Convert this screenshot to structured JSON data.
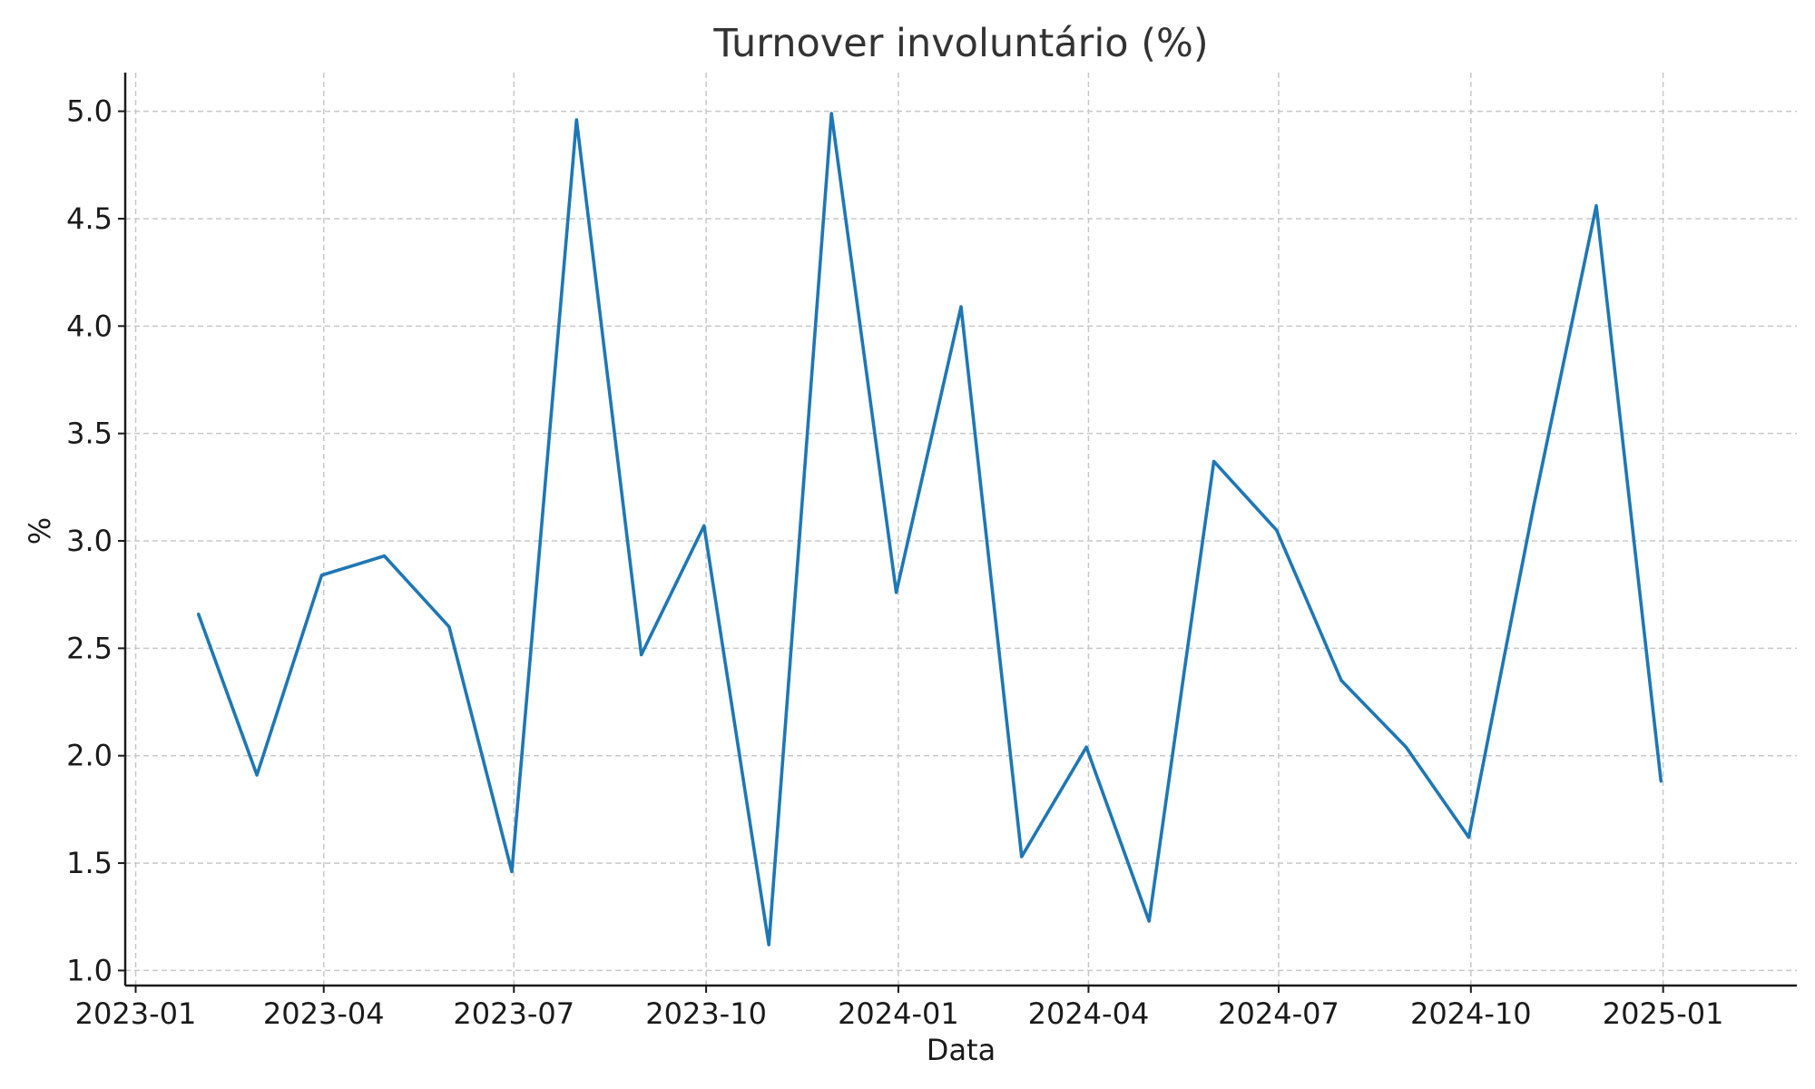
{
  "chart_data": {
    "type": "line",
    "title": "Turnover involuntário (%)",
    "xlabel": "Data",
    "ylabel": "%",
    "x": [
      "2023-01-31",
      "2023-02-28",
      "2023-03-31",
      "2023-04-30",
      "2023-05-31",
      "2023-06-30",
      "2023-07-31",
      "2023-08-31",
      "2023-09-30",
      "2023-10-31",
      "2023-11-30",
      "2023-12-31",
      "2024-01-31",
      "2024-02-29",
      "2024-03-31",
      "2024-04-30",
      "2024-05-31",
      "2024-06-30",
      "2024-07-31",
      "2024-08-31",
      "2024-09-30",
      "2024-10-31",
      "2024-11-30",
      "2024-12-31"
    ],
    "series": [
      {
        "values": [
          2.66,
          1.91,
          2.84,
          2.93,
          2.6,
          1.46,
          4.96,
          2.47,
          3.07,
          1.12,
          4.99,
          2.76,
          4.09,
          1.53,
          2.04,
          1.23,
          3.37,
          3.05,
          2.35,
          2.04,
          1.62,
          3.16,
          4.56,
          1.88
        ],
        "color": "#1f77b4"
      }
    ],
    "x_ticks": [
      "2023-01",
      "2023-04",
      "2023-07",
      "2023-10",
      "2024-01",
      "2024-04",
      "2024-07",
      "2024-10",
      "2025-01"
    ],
    "y_ticks": [
      "1.0",
      "1.5",
      "2.0",
      "2.5",
      "3.0",
      "3.5",
      "4.0",
      "4.5",
      "5.0"
    ],
    "xlim": [
      "2022-12-27",
      "2025-03-06"
    ],
    "ylim": [
      0.93,
      5.18
    ],
    "grid": true,
    "legend": "none"
  }
}
